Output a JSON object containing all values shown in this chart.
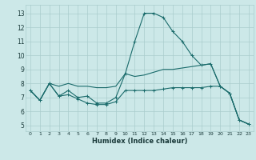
{
  "xlabel": "Humidex (Indice chaleur)",
  "xlim": [
    -0.5,
    23.5
  ],
  "ylim": [
    4.6,
    13.6
  ],
  "yticks": [
    5,
    6,
    7,
    8,
    9,
    10,
    11,
    12,
    13
  ],
  "xticks": [
    0,
    1,
    2,
    3,
    4,
    5,
    6,
    7,
    8,
    9,
    10,
    11,
    12,
    13,
    14,
    15,
    16,
    17,
    18,
    19,
    20,
    21,
    22,
    23
  ],
  "background_color": "#cce8e8",
  "grid_color": "#aacccc",
  "line_color": "#1a6b6b",
  "hours": [
    0,
    1,
    2,
    3,
    4,
    5,
    6,
    7,
    8,
    9,
    10,
    11,
    12,
    13,
    14,
    15,
    16,
    17,
    18,
    19,
    20,
    21,
    22,
    23
  ],
  "line_max": [
    7.5,
    6.8,
    8.0,
    7.1,
    7.5,
    7.0,
    7.1,
    6.6,
    6.6,
    7.0,
    8.7,
    11.0,
    13.0,
    13.0,
    12.7,
    11.7,
    11.0,
    10.0,
    9.3,
    9.4,
    7.8,
    7.3,
    5.4,
    5.1
  ],
  "line_mid": [
    7.5,
    6.8,
    8.0,
    7.8,
    8.0,
    7.8,
    7.8,
    7.7,
    7.7,
    7.8,
    8.7,
    8.5,
    8.6,
    8.8,
    9.0,
    9.0,
    9.1,
    9.2,
    9.3,
    9.4,
    7.8,
    7.3,
    5.4,
    5.1
  ],
  "line_min": [
    7.5,
    6.8,
    8.0,
    7.1,
    7.2,
    6.9,
    6.6,
    6.5,
    6.5,
    6.7,
    7.5,
    7.5,
    7.5,
    7.5,
    7.6,
    7.7,
    7.7,
    7.7,
    7.7,
    7.8,
    7.8,
    7.3,
    5.4,
    5.1
  ]
}
